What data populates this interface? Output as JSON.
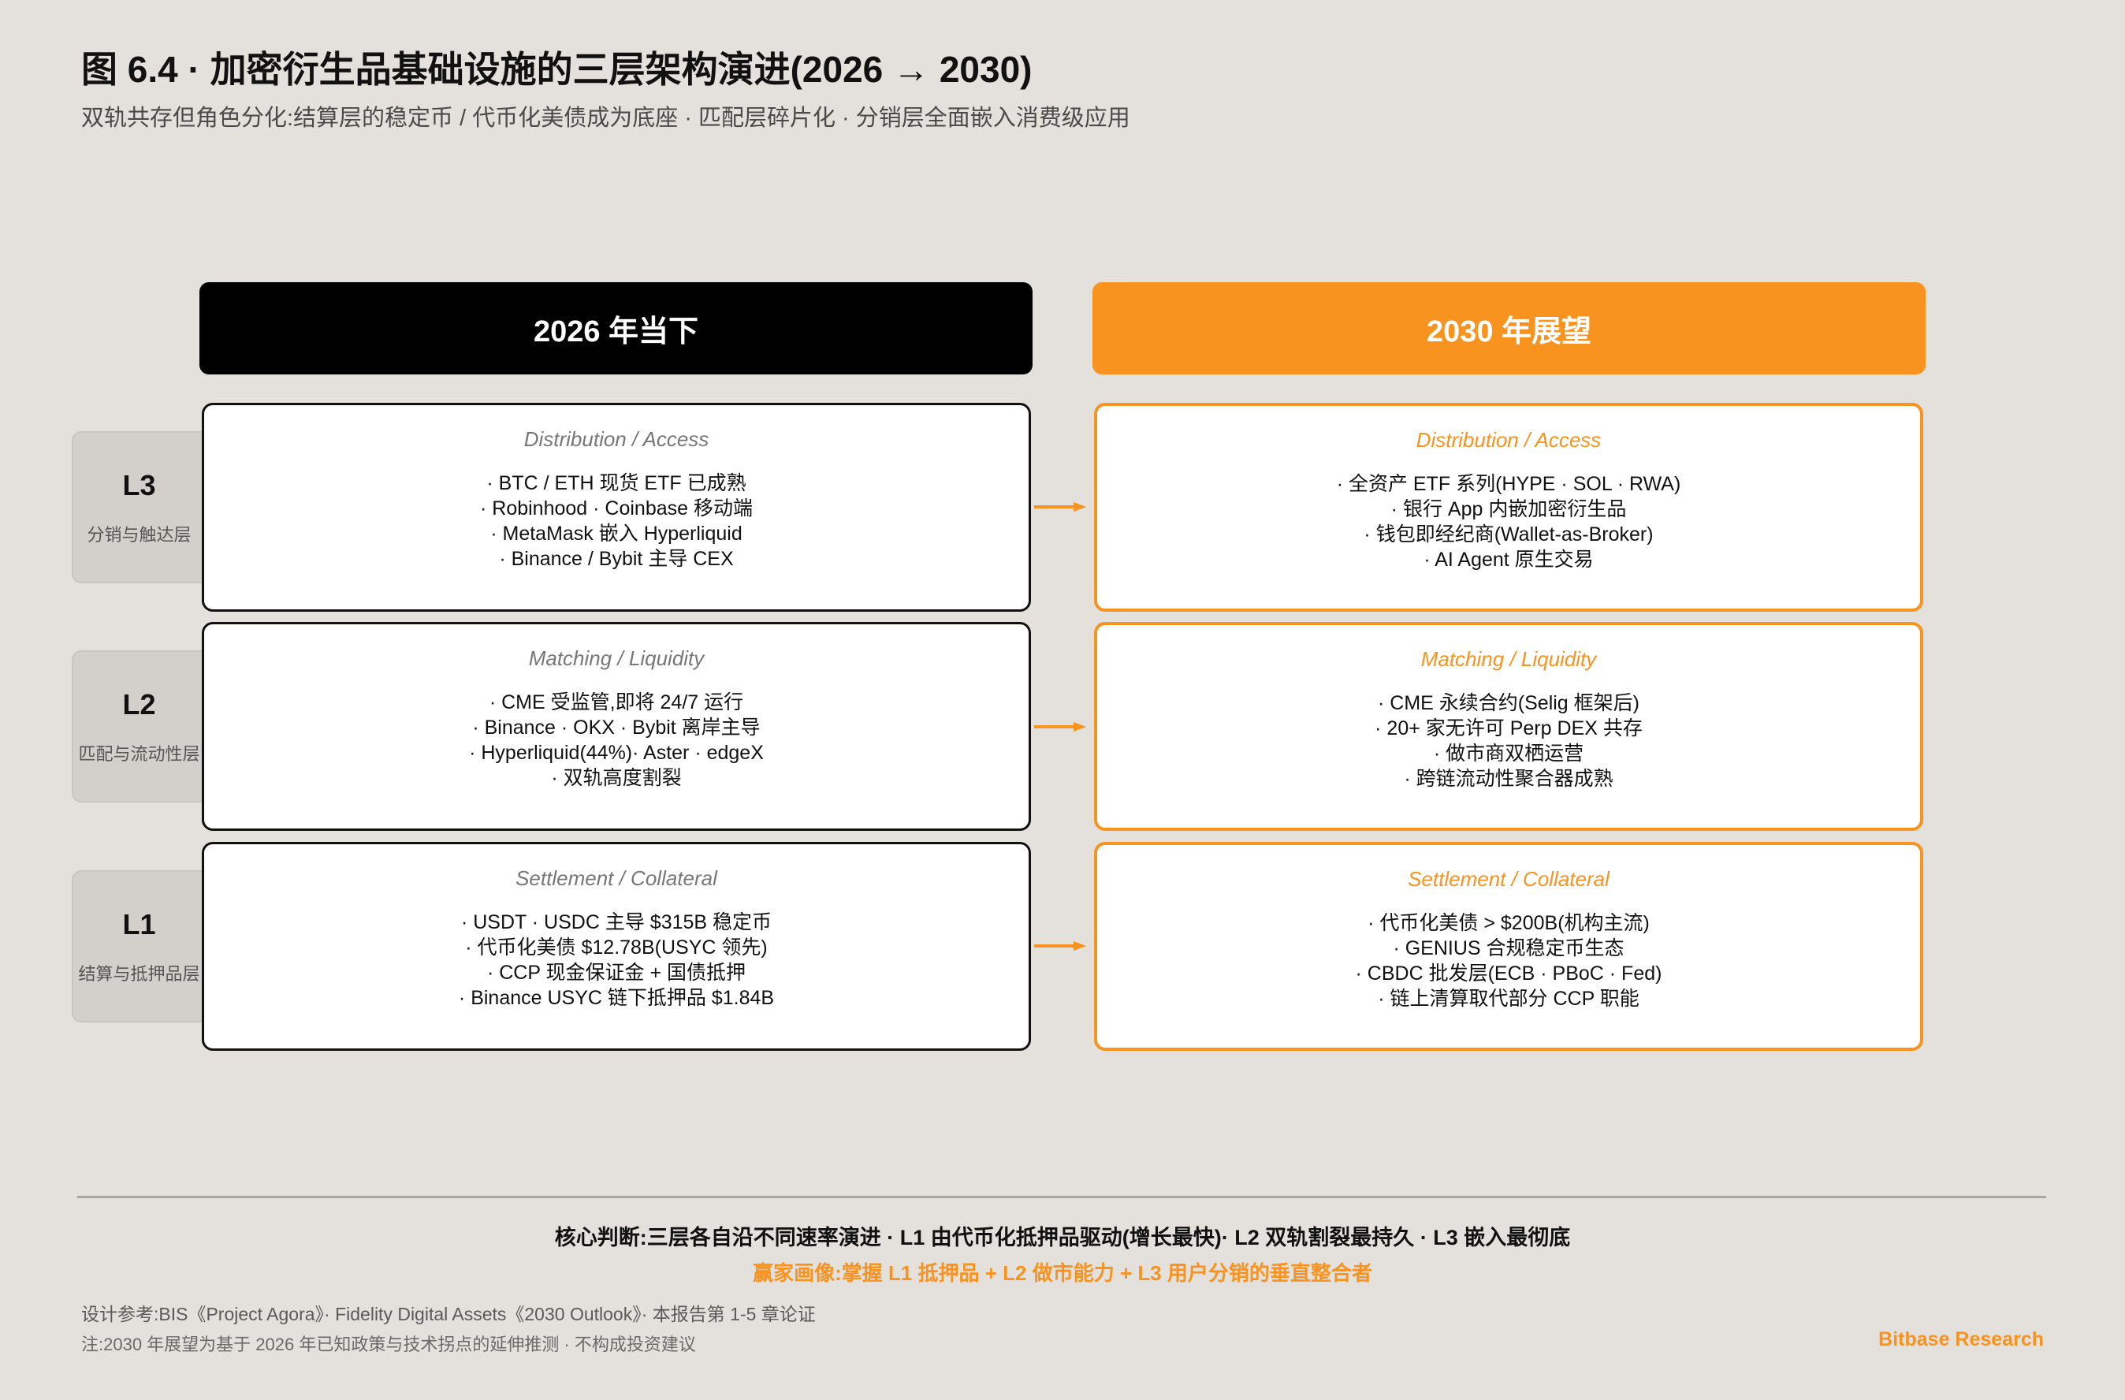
{
  "title": "图 6.4 · 加密衍生品基础设施的三层架构演进(2026 → 2030)",
  "subtitle": "双轨共存但角色分化:结算层的稳定币 / 代币化美债成为底座 · 匹配层碎片化 · 分销层全面嵌入消费级应用",
  "columns": {
    "now": "2026 年当下",
    "future": "2030 年展望"
  },
  "colors": {
    "accent": "#f7931e",
    "background": "#e4e0db",
    "now_header": "#000000"
  },
  "layers": [
    {
      "code": "L3",
      "name": "分销与触达层",
      "label": "Distribution / Access",
      "now": [
        "· BTC / ETH 现货 ETF 已成熟",
        "· Robinhood · Coinbase 移动端",
        "· MetaMask 嵌入 Hyperliquid",
        "· Binance / Bybit 主导 CEX"
      ],
      "future": [
        "· 全资产 ETF 系列(HYPE · SOL · RWA)",
        "· 银行 App 内嵌加密衍生品",
        "· 钱包即经纪商(Wallet-as-Broker)",
        "· AI Agent 原生交易"
      ]
    },
    {
      "code": "L2",
      "name": "匹配与流动性层",
      "label": "Matching / Liquidity",
      "now": [
        "· CME 受监管,即将 24/7 运行",
        "· Binance · OKX · Bybit 离岸主导",
        "· Hyperliquid(44%)· Aster · edgeX",
        "· 双轨高度割裂"
      ],
      "future": [
        "· CME 永续合约(Selig 框架后)",
        "· 20+ 家无许可 Perp DEX 共存",
        "· 做市商双栖运营",
        "· 跨链流动性聚合器成熟"
      ]
    },
    {
      "code": "L1",
      "name": "结算与抵押品层",
      "label": "Settlement / Collateral",
      "now": [
        "· USDT · USDC 主导 $315B 稳定币",
        "· 代币化美债 $12.78B(USYC 领先)",
        "· CCP 现金保证金 + 国债抵押",
        "· Binance USYC 链下抵押品 $1.84B"
      ],
      "future": [
        "· 代币化美债 > $200B(机构主流)",
        "· GENIUS 合规稳定币生态",
        "· CBDC 批发层(ECB · PBoC · Fed)",
        "· 链上清算取代部分 CCP 职能"
      ]
    }
  ],
  "footer": {
    "core": "核心判断:三层各自沿不同速率演进 · L1 由代币化抵押品驱动(增长最快)· L2 双轨割裂最持久 · L3 嵌入最彻底",
    "winner": "赢家画像:掌握 L1 抵押品 + L2 做市能力 + L3 用户分销的垂直整合者",
    "reference": "设计参考:BIS《Project Agora》· Fidelity Digital Assets《2030 Outlook》· 本报告第 1-5 章论证",
    "note": "注:2030 年展望为基于 2026 年已知政策与技术拐点的延伸推测 · 不构成投资建议",
    "brand": "Bitbase Research"
  }
}
